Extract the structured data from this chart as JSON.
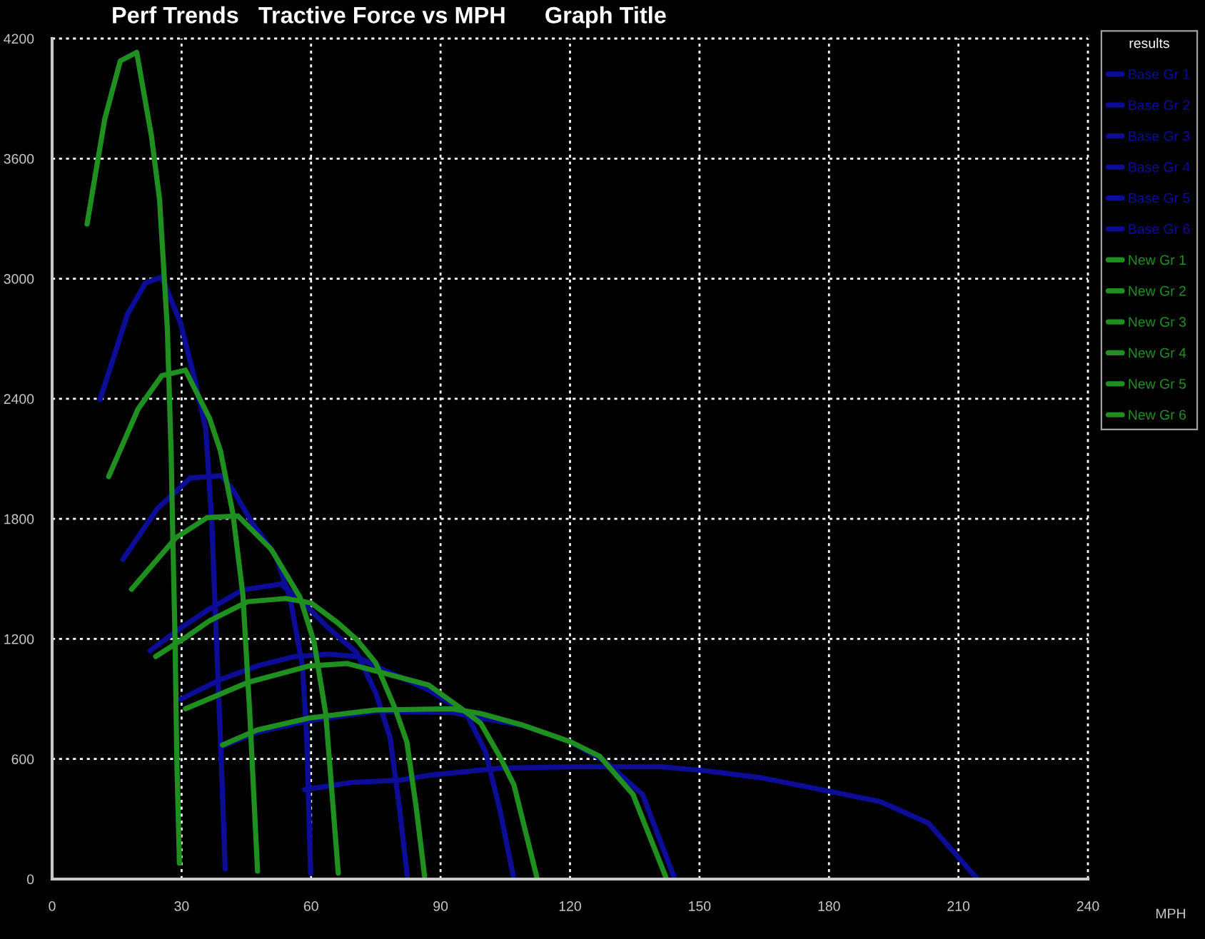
{
  "chart_data": {
    "type": "line",
    "title": "Perf Trends   Tractive Force vs MPH      Graph Title",
    "xlabel": "MPH",
    "legend_title": "results",
    "legend": "top right",
    "grid": true,
    "xlim": [
      0,
      240
    ],
    "xticks": [
      0,
      30,
      60,
      90,
      120,
      150,
      180,
      210,
      240
    ],
    "ylim": [
      0,
      4200
    ],
    "yticks": [
      0,
      600,
      1200,
      1800,
      2400,
      3000,
      3600,
      4200
    ],
    "series": [
      {
        "name": "Base Gr 1",
        "color": "#0c0c96",
        "x": [
          11.1,
          17.5,
          21.6,
          25.4,
          29.8,
          33.1,
          35.6,
          37.0,
          38.1,
          39.2,
          40.1
        ],
        "values": [
          2396,
          2824,
          2978,
          3009,
          2776,
          2491,
          2250,
          1778,
          1184,
          592,
          50
        ]
      },
      {
        "name": "Base Gr 2",
        "color": "#0c0c96",
        "x": [
          16.4,
          24.3,
          32.0,
          39.2,
          41.9,
          46.4,
          51.9,
          55.2,
          58.0,
          59.0,
          59.9
        ],
        "values": [
          1597,
          1849,
          2004,
          2016,
          1945,
          1778,
          1611,
          1398,
          1065,
          708,
          30
        ]
      },
      {
        "name": "Base Gr 3",
        "color": "#0c0c96",
        "x": [
          22.7,
          29.8,
          36.5,
          44.2,
          53.0,
          57.4,
          64.0,
          70.6,
          75.0,
          78.3,
          80.5,
          82.3
        ],
        "values": [
          1141,
          1255,
          1350,
          1445,
          1474,
          1398,
          1255,
          1130,
          930,
          708,
          352,
          15
        ]
      },
      {
        "name": "Base Gr 4",
        "color": "#0c0c96",
        "x": [
          29.8,
          38.6,
          47.5,
          56.3,
          64.0,
          70.6,
          77.2,
          87.2,
          96.0,
          100.4,
          103.7,
          106.9
        ],
        "values": [
          899,
          993,
          1065,
          1112,
          1124,
          1112,
          1041,
          946,
          827,
          637,
          352,
          10
        ]
      },
      {
        "name": "Base Gr 5",
        "color": "#0c0c96",
        "x": [
          39.2,
          47.5,
          59.6,
          75.0,
          92.7,
          99.3,
          109.2,
          120.2,
          128.0,
          136.8,
          144.2
        ],
        "values": [
          661,
          734,
          792,
          839,
          832,
          804,
          768,
          685,
          590,
          423,
          5
        ]
      },
      {
        "name": "Base Gr 6",
        "color": "#0c0c96",
        "x": [
          58.5,
          69.5,
          80.5,
          87.2,
          103.7,
          120.2,
          141.2,
          151.1,
          164.3,
          180.9,
          191.9,
          203.0,
          214.2
        ],
        "values": [
          447,
          483,
          494,
          518,
          554,
          561,
          561,
          542,
          506,
          435,
          387,
          280,
          5
        ]
      },
      {
        "name": "New Gr 1",
        "color": "#1f8f1f",
        "x": [
          8.1,
          12.2,
          15.8,
          19.6,
          23.0,
          24.9,
          26.7,
          27.6,
          27.9,
          28.5,
          28.9,
          29.5
        ],
        "values": [
          3273,
          3798,
          4088,
          4131,
          3715,
          3394,
          2752,
          2111,
          1778,
          1184,
          592,
          80
        ]
      },
      {
        "name": "New Gr 2",
        "color": "#1f8f1f",
        "x": [
          13.1,
          19.9,
          25.4,
          30.9,
          36.5,
          39.0,
          41.9,
          44.2,
          45.8,
          47.6
        ],
        "values": [
          2011,
          2348,
          2515,
          2543,
          2301,
          2140,
          1825,
          1421,
          827,
          40
        ]
      },
      {
        "name": "New Gr 3",
        "color": "#1f8f1f",
        "x": [
          18.4,
          28.7,
          35.9,
          43.1,
          50.8,
          57.4,
          60.7,
          63.4,
          66.3
        ],
        "values": [
          1448,
          1706,
          1806,
          1814,
          1647,
          1410,
          1184,
          827,
          30
        ]
      },
      {
        "name": "New Gr 4",
        "color": "#1f8f1f",
        "x": [
          24.0,
          30.9,
          36.5,
          45.3,
          54.1,
          60.0,
          66.2,
          70.6,
          75.0,
          79.5,
          82.2,
          84.4,
          86.3
        ],
        "values": [
          1112,
          1207,
          1291,
          1386,
          1402,
          1380,
          1280,
          1196,
          1080,
          851,
          685,
          352,
          15
        ]
      },
      {
        "name": "New Gr 5",
        "color": "#1f8f1f",
        "x": [
          30.9,
          45.3,
          59.6,
          68.4,
          87.2,
          94.9,
          99.3,
          103.7,
          107.0,
          112.3
        ],
        "values": [
          851,
          982,
          1065,
          1077,
          970,
          851,
          779,
          613,
          471,
          10
        ]
      },
      {
        "name": "New Gr 6",
        "color": "#1f8f1f",
        "x": [
          39.5,
          47.5,
          59.6,
          75.0,
          92.7,
          99.3,
          109.2,
          120.2,
          126.9,
          134.6,
          142.2
        ],
        "values": [
          670,
          745,
          805,
          845,
          851,
          827,
          768,
          685,
          613,
          423,
          10
        ]
      }
    ]
  }
}
